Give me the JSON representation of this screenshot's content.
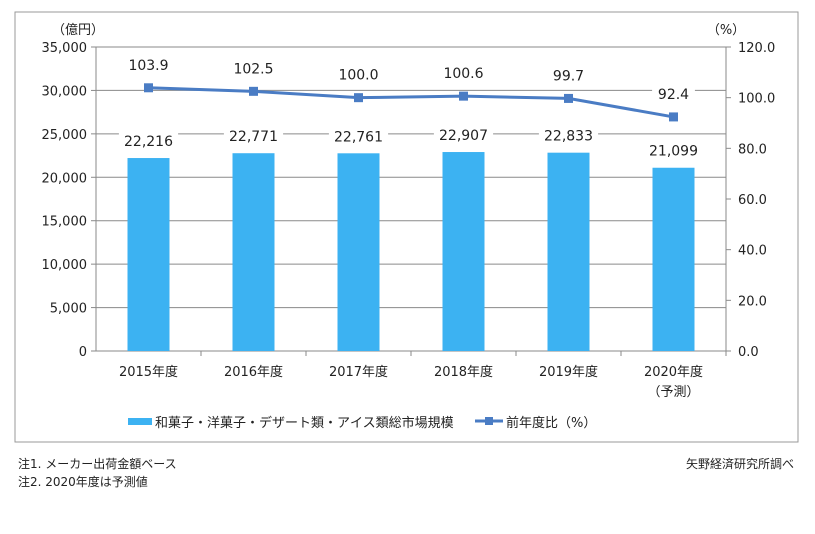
{
  "chart_data": {
    "type": "bar+line",
    "categories": [
      "2015年度",
      "2016年度",
      "2017年度",
      "2018年度",
      "2019年度",
      "2020年度"
    ],
    "category_sublabels": [
      "",
      "",
      "",
      "",
      "",
      "（予測）"
    ],
    "series": [
      {
        "name": "和菓子・洋菓子・デザート類・アイス類総市場規模",
        "type": "bar",
        "axis": "left",
        "values": [
          22216,
          22771,
          22761,
          22907,
          22833,
          21099
        ],
        "labels": [
          "22,216",
          "22,771",
          "22,761",
          "22,907",
          "22,833",
          "21,099"
        ],
        "color": "#3cb2f2"
      },
      {
        "name": "前年度比（%）",
        "type": "line",
        "axis": "right",
        "values": [
          103.9,
          102.5,
          100.0,
          100.6,
          99.7,
          92.4
        ],
        "labels": [
          "103.9",
          "102.5",
          "100.0",
          "100.6",
          "99.7",
          "92.4"
        ],
        "color": "#4a7cc4"
      }
    ],
    "y_left": {
      "unit": "（億円）",
      "range": [
        0,
        35000
      ],
      "ticks": [
        "0",
        "5,000",
        "10,000",
        "15,000",
        "20,000",
        "25,000",
        "30,000",
        "35,000"
      ]
    },
    "y_right": {
      "unit": "（%）",
      "range": [
        0,
        120
      ],
      "ticks": [
        "0.0",
        "20.0",
        "40.0",
        "60.0",
        "80.0",
        "100.0",
        "120.0"
      ]
    },
    "grid": true,
    "legend_position": "bottom"
  },
  "notes": [
    "注1. メーカー出荷金額ベース",
    "注2. 2020年度は予測値"
  ],
  "source": "矢野経済研究所調べ"
}
